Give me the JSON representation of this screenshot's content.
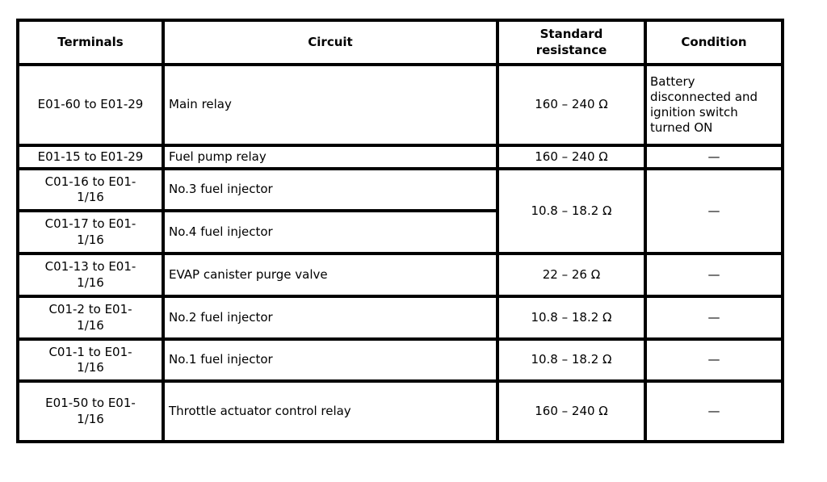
{
  "table": {
    "headers": {
      "terminals": "Terminals",
      "circuit": "Circuit",
      "standard_resistance": "Standard resistance",
      "condition": "Condition"
    },
    "rows": [
      {
        "terminals": "E01-60 to E01-29",
        "circuit": "Main relay",
        "resistance": "160 – 240 Ω",
        "condition": "Battery disconnected and ignition switch turned ON"
      },
      {
        "terminals": "E01-15 to E01-29",
        "circuit": "Fuel pump relay",
        "resistance": "160 – 240 Ω",
        "condition": "—"
      },
      {
        "terminals": "C01-16 to E01-1/16",
        "circuit": "No.3 fuel injector",
        "resistance": "10.8 – 18.2 Ω",
        "condition": "—"
      },
      {
        "terminals": "C01-17 to E01-1/16",
        "circuit": "No.4 fuel injector"
      },
      {
        "terminals": "C01-13 to E01-1/16",
        "circuit": "EVAP canister purge valve",
        "resistance": "22 – 26 Ω",
        "condition": "—"
      },
      {
        "terminals": "C01-2 to E01-1/16",
        "circuit": "No.2 fuel injector",
        "resistance": "10.8 – 18.2 Ω",
        "condition": "—"
      },
      {
        "terminals": "C01-1 to E01-1/16",
        "circuit": "No.1 fuel injector",
        "resistance": "10.8 – 18.2 Ω",
        "condition": "—"
      },
      {
        "terminals": "E01-50 to E01-1/16",
        "circuit": "Throttle actuator control relay",
        "resistance": "160 – 240 Ω",
        "condition": "—"
      }
    ]
  }
}
